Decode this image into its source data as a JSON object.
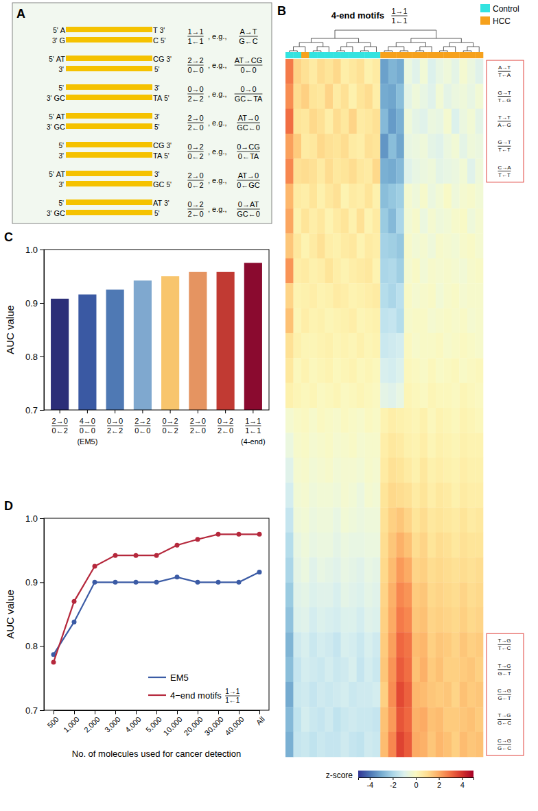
{
  "panel_a": {
    "letter": "A",
    "five_prime": "5'",
    "three_prime": "3'",
    "eg": ", e.g.,",
    "rows": [
      {
        "top": {
          "left": "A",
          "right": "T"
        },
        "bottom": {
          "left": "G",
          "right": "C"
        },
        "motif": [
          "1→1",
          "1←1"
        ],
        "example": [
          "A→T",
          "G←C"
        ]
      },
      {
        "top": {
          "left": "AT",
          "right": "CG"
        },
        "bottom": {},
        "motif": [
          "2→2",
          "0←0"
        ],
        "example": [
          "AT→CG",
          "0←0"
        ]
      },
      {
        "top": {},
        "bottom": {
          "left": "GC",
          "right": "TA"
        },
        "motif": [
          "0→0",
          "2←2"
        ],
        "example": [
          "0→0",
          "GC←TA"
        ]
      },
      {
        "top": {
          "left": "AT"
        },
        "bottom": {
          "left": "GC"
        },
        "motif": [
          "2→0",
          "2←0"
        ],
        "example": [
          "AT→0",
          "GC←0"
        ]
      },
      {
        "top": {
          "right": "CG"
        },
        "bottom": {
          "right": "TA"
        },
        "motif": [
          "0→2",
          "0←2"
        ],
        "example": [
          "0→CG",
          "0←TA"
        ]
      },
      {
        "top": {
          "left": "AT"
        },
        "bottom": {
          "right": "GC"
        },
        "motif": [
          "2→0",
          "0←2"
        ],
        "example": [
          "AT→0",
          "0←GC"
        ]
      },
      {
        "top": {
          "right": "AT"
        },
        "bottom": {
          "left": "GC"
        },
        "motif": [
          "0→2",
          "2←0"
        ],
        "example": [
          "0→AT",
          "GC←0"
        ]
      }
    ]
  },
  "chart_data": [
    {
      "letter": "B",
      "type": "heatmap",
      "title": "4-end motifs",
      "title_motif": [
        "1→1",
        "1←1"
      ],
      "legend": "top-right",
      "groups": [
        {
          "name": "Control",
          "color": "#33e3e0"
        },
        {
          "name": "HCC",
          "color": "#f6a11c"
        }
      ],
      "column_groups": [
        "Control",
        "Control",
        "HCC",
        "Control",
        "Control",
        "Control",
        "Control",
        "Control",
        "Control",
        "Control",
        "Control",
        "Control",
        "HCC",
        "HCC",
        "HCC",
        "HCC",
        "HCC",
        "HCC",
        "HCC",
        "HCC",
        "HCC",
        "HCC",
        "HCC",
        "HCC",
        "HCC"
      ],
      "rows": [
        [
          "A→T",
          "T←A"
        ],
        [
          "G→T",
          "T←G"
        ],
        [
          "T→T",
          "A←G"
        ],
        [
          "G→T",
          "T←T"
        ],
        [
          "C→A",
          "T←T"
        ],
        null,
        null,
        null,
        null,
        null,
        null,
        null,
        null,
        null,
        null,
        null,
        null,
        null,
        null,
        null,
        null,
        null,
        null,
        [
          "T→G",
          "T←C"
        ],
        [
          "T→G",
          "G←T"
        ],
        [
          "C→G",
          "G←T"
        ],
        [
          "T→G",
          "G←C"
        ],
        [
          "C→G",
          "G←C"
        ]
      ],
      "values": [
        [
          2.8,
          1.2,
          0.9,
          0.6,
          1.0,
          0.8,
          1.1,
          0.5,
          0.7,
          0.9,
          0.4,
          0.6,
          -3.2,
          -2.8,
          -3.0,
          -0.6,
          -0.9,
          -0.4,
          -1.0,
          -0.7,
          -0.5,
          -0.8,
          -0.3,
          -0.6,
          -0.9
        ],
        [
          2.5,
          1.0,
          1.3,
          0.8,
          0.7,
          1.2,
          0.6,
          0.9,
          0.4,
          0.8,
          1.0,
          0.5,
          -3.0,
          -3.1,
          -2.6,
          -0.8,
          -0.5,
          -0.7,
          -0.9,
          -0.4,
          -0.8,
          -0.6,
          -0.5,
          -0.7,
          -0.4
        ],
        [
          3.0,
          0.8,
          0.7,
          1.1,
          0.9,
          0.5,
          1.0,
          0.7,
          1.2,
          0.6,
          0.7,
          0.9,
          -2.7,
          -3.3,
          -2.9,
          -0.5,
          -0.8,
          -0.9,
          -0.6,
          -0.7,
          -0.3,
          -1.0,
          -0.6,
          -0.4,
          -0.8
        ],
        [
          2.2,
          1.4,
          0.6,
          0.7,
          1.1,
          0.9,
          0.8,
          1.0,
          0.6,
          0.5,
          0.9,
          0.8,
          -3.4,
          -2.6,
          -3.1,
          -0.7,
          -0.6,
          -0.5,
          -0.8,
          -0.9,
          -0.6,
          -0.4,
          -0.8,
          -0.5,
          -0.6
        ],
        [
          2.6,
          0.9,
          1.0,
          0.9,
          0.6,
          1.0,
          0.7,
          0.8,
          1.0,
          0.7,
          0.6,
          1.1,
          -2.9,
          -3.0,
          -2.7,
          -0.9,
          -0.7,
          -0.6,
          -0.5,
          -0.8,
          -0.7,
          -0.6,
          -0.4,
          -0.9,
          -0.5
        ],
        [
          1.8,
          0.6,
          0.5,
          0.8,
          0.4,
          0.7,
          0.9,
          0.3,
          0.6,
          0.5,
          0.8,
          0.4,
          -2.6,
          -2.4,
          -2.2,
          -0.3,
          -0.5,
          -0.2,
          -0.6,
          -0.4,
          -0.1,
          -0.5,
          -0.3,
          -0.2,
          -0.4
        ],
        [
          2.1,
          0.4,
          0.8,
          0.5,
          0.7,
          0.3,
          0.6,
          0.8,
          0.4,
          0.9,
          0.3,
          0.6,
          -2.3,
          -2.7,
          -2.0,
          -0.4,
          -0.2,
          -0.6,
          -0.3,
          -0.5,
          -0.4,
          -0.2,
          -0.1,
          -0.5,
          -0.3
        ],
        [
          1.5,
          0.7,
          0.3,
          0.6,
          0.9,
          0.5,
          0.4,
          0.6,
          0.7,
          0.3,
          0.6,
          0.5,
          -2.1,
          -2.2,
          -2.4,
          -0.2,
          -0.4,
          -0.3,
          -0.5,
          -0.2,
          -0.3,
          -0.4,
          -0.2,
          -0.1,
          -0.3
        ],
        [
          2.4,
          0.5,
          0.6,
          0.4,
          0.5,
          0.8,
          0.5,
          0.3,
          0.5,
          0.6,
          0.7,
          0.3,
          -2.0,
          -1.9,
          -2.2,
          -0.3,
          -0.1,
          -0.4,
          -0.2,
          -0.3,
          -0.2,
          -0.3,
          -0.4,
          -0.2,
          -0.1
        ],
        [
          1.2,
          0.3,
          0.4,
          0.5,
          0.3,
          0.4,
          0.6,
          0.5,
          0.3,
          0.4,
          0.5,
          0.6,
          -1.8,
          -2.0,
          -1.7,
          -0.1,
          -0.3,
          -0.2,
          -0.1,
          -0.4,
          -0.2,
          -0.1,
          -0.3,
          -0.2,
          -0.2
        ],
        [
          1.6,
          0.2,
          0.5,
          0.3,
          0.4,
          0.2,
          0.3,
          0.4,
          0.5,
          0.2,
          0.3,
          0.4,
          -1.6,
          -1.5,
          -1.8,
          -0.2,
          -0.1,
          -0.1,
          -0.3,
          -0.2,
          -0.1,
          -0.2,
          -0.1,
          -0.3,
          -0.2
        ],
        [
          0.9,
          0.4,
          0.2,
          0.2,
          0.3,
          0.4,
          0.2,
          0.3,
          0.2,
          0.4,
          0.2,
          0.3,
          -1.4,
          -1.3,
          -1.2,
          0.0,
          -0.2,
          -0.1,
          -0.1,
          0.0,
          -0.2,
          -0.1,
          0.0,
          -0.1,
          -0.2
        ],
        [
          0.7,
          0.1,
          0.3,
          0.1,
          0.2,
          0.3,
          0.1,
          0.2,
          0.3,
          0.1,
          0.2,
          0.1,
          -1.1,
          -1.2,
          -1.0,
          0.1,
          0.0,
          -0.1,
          0.1,
          -0.1,
          0.0,
          0.1,
          -0.1,
          0.0,
          0.1
        ],
        [
          0.4,
          0.2,
          0.1,
          0.2,
          0.0,
          0.1,
          0.2,
          0.0,
          0.1,
          0.2,
          0.1,
          0.0,
          -0.8,
          -0.9,
          -0.7,
          0.2,
          0.1,
          0.0,
          0.2,
          0.1,
          0.1,
          0.0,
          0.2,
          0.1,
          0.0
        ],
        [
          -0.3,
          -0.1,
          0.0,
          -0.2,
          0.0,
          -0.1,
          -0.2,
          0.0,
          -0.1,
          -0.2,
          0.0,
          -0.1,
          0.3,
          0.5,
          0.4,
          0.3,
          0.2,
          0.4,
          0.1,
          0.3,
          0.2,
          0.1,
          0.3,
          0.2,
          0.1
        ],
        [
          -0.6,
          -0.2,
          -0.1,
          -0.3,
          -0.2,
          -0.1,
          -0.3,
          -0.2,
          -0.1,
          -0.3,
          -0.2,
          -0.2,
          0.5,
          0.7,
          0.6,
          0.4,
          0.3,
          0.5,
          0.2,
          0.4,
          0.3,
          0.2,
          0.4,
          0.3,
          0.3
        ],
        [
          -0.9,
          -0.3,
          -0.2,
          -0.4,
          -0.3,
          -0.2,
          -0.4,
          -0.3,
          -0.3,
          -0.4,
          -0.2,
          -0.3,
          0.6,
          0.9,
          0.8,
          0.6,
          0.4,
          0.7,
          0.4,
          0.5,
          0.4,
          0.3,
          0.5,
          0.4,
          0.4
        ],
        [
          -1.2,
          -0.4,
          -0.3,
          -0.5,
          -0.4,
          -0.4,
          -0.5,
          -0.3,
          -0.4,
          -0.6,
          -0.3,
          -0.4,
          0.8,
          1.1,
          1.0,
          0.9,
          0.6,
          0.8,
          0.5,
          0.7,
          0.6,
          0.4,
          0.6,
          0.5,
          0.5
        ],
        [
          -1.5,
          -0.5,
          -0.4,
          -0.6,
          -0.5,
          -0.5,
          -0.7,
          -0.4,
          -0.5,
          -0.6,
          -0.5,
          -0.5,
          0.9,
          1.3,
          1.5,
          1.2,
          0.8,
          1.0,
          0.7,
          0.8,
          0.7,
          0.6,
          0.8,
          0.6,
          0.7
        ],
        [
          -1.8,
          -0.7,
          -0.5,
          -0.7,
          -0.6,
          -0.6,
          -0.8,
          -0.6,
          -0.7,
          -0.7,
          -0.6,
          -0.6,
          1.0,
          1.5,
          1.9,
          1.6,
          1.0,
          1.2,
          0.8,
          1.0,
          0.9,
          0.7,
          0.9,
          0.8,
          0.8
        ],
        [
          -2.0,
          -0.8,
          -0.6,
          -0.9,
          -0.7,
          -0.8,
          -0.9,
          -0.7,
          -0.8,
          -0.9,
          -0.7,
          -0.8,
          1.1,
          1.7,
          2.3,
          2.0,
          1.2,
          1.3,
          1.0,
          1.1,
          1.0,
          0.9,
          1.0,
          0.9,
          1.0
        ],
        [
          -2.3,
          -0.9,
          -0.8,
          -1.0,
          -0.9,
          -0.9,
          -1.1,
          -0.8,
          -0.9,
          -1.0,
          -0.8,
          -0.9,
          1.2,
          1.9,
          2.6,
          2.4,
          1.4,
          1.5,
          1.1,
          1.2,
          1.1,
          1.0,
          1.2,
          1.0,
          1.1
        ],
        [
          -2.5,
          -1.0,
          -0.9,
          -1.2,
          -1.0,
          -1.1,
          -1.2,
          -1.0,
          -1.0,
          -1.2,
          -0.9,
          -1.0,
          1.3,
          2.0,
          2.8,
          2.6,
          1.5,
          1.6,
          1.2,
          1.3,
          1.2,
          1.1,
          1.3,
          1.1,
          1.2
        ],
        [
          -2.8,
          -1.3,
          -1.1,
          -1.4,
          -1.2,
          -1.3,
          -1.5,
          -1.1,
          -1.2,
          -1.4,
          -1.1,
          -1.3,
          1.4,
          2.2,
          3.1,
          2.9,
          1.7,
          1.8,
          1.3,
          1.5,
          1.4,
          1.2,
          1.5,
          1.3,
          1.4
        ],
        [
          -2.6,
          -1.5,
          -1.2,
          -1.3,
          -1.4,
          -1.2,
          -1.4,
          -1.3,
          -1.1,
          -1.5,
          -1.2,
          -1.4,
          1.5,
          2.4,
          3.3,
          3.0,
          1.6,
          1.9,
          1.4,
          1.6,
          1.3,
          1.3,
          1.4,
          1.5,
          1.3
        ],
        [
          -3.0,
          -1.4,
          -1.3,
          -1.5,
          -1.3,
          -1.4,
          -1.3,
          -1.2,
          -1.4,
          -1.3,
          -1.3,
          -1.2,
          1.3,
          2.5,
          3.6,
          3.2,
          1.8,
          1.7,
          1.5,
          1.4,
          1.5,
          1.2,
          1.6,
          1.4,
          1.5
        ],
        [
          -2.7,
          -1.6,
          -1.2,
          -1.4,
          -1.5,
          -1.3,
          -1.6,
          -1.4,
          -1.3,
          -1.4,
          -1.4,
          -1.5,
          1.6,
          2.3,
          3.4,
          3.1,
          1.9,
          2.0,
          1.6,
          1.7,
          1.4,
          1.4,
          1.5,
          1.6,
          1.4
        ],
        [
          -2.9,
          -1.5,
          -1.4,
          -1.6,
          -1.4,
          -1.5,
          -1.5,
          -1.3,
          -1.5,
          -1.6,
          -1.3,
          -1.4,
          1.7,
          2.6,
          3.7,
          3.3,
          2.0,
          1.9,
          1.5,
          1.8,
          1.6,
          1.3,
          1.7,
          1.5,
          1.6
        ]
      ],
      "colorbar": {
        "title": "z-score",
        "range": [
          -5,
          5
        ],
        "ticks": [
          -4,
          -2,
          0,
          2,
          4
        ]
      }
    },
    {
      "letter": "C",
      "type": "bar",
      "ylabel": "AUC value",
      "categories": [
        [
          "2→0",
          "0←2"
        ],
        [
          "4→0",
          "0←0"
        ],
        [
          "0→0",
          "2←2"
        ],
        [
          "2→2",
          "0←0"
        ],
        [
          "0→2",
          "0←2"
        ],
        [
          "2→0",
          "2←0"
        ],
        [
          "0→2",
          "2←0"
        ],
        [
          "1→1",
          "1←1"
        ]
      ],
      "category_notes": [
        null,
        "(EM5)",
        null,
        null,
        null,
        null,
        null,
        "(4-end)"
      ],
      "values": [
        0.908,
        0.916,
        0.925,
        0.942,
        0.95,
        0.958,
        0.958,
        0.975
      ],
      "colors": [
        "#2c2e78",
        "#3a59a3",
        "#4f79b4",
        "#7fa8cf",
        "#f8c56d",
        "#e59461",
        "#c13a33",
        "#8a0a2f"
      ],
      "ylim": [
        0.7,
        1.0
      ],
      "yticks": [
        0.7,
        0.8,
        0.9,
        {
          "value": 1,
          "label": "1.0"
        }
      ]
    },
    {
      "letter": "D",
      "type": "line",
      "xlabel": "No. of molecules used for cancer detection",
      "ylabel": "AUC value",
      "legend": "bottom-right",
      "categories": [
        "500",
        "1,000",
        "2,000",
        "3,000",
        "4,000",
        "5,000",
        "10,000",
        "20,000",
        "30,000",
        "40,000",
        "All"
      ],
      "series": [
        {
          "name": "EM5",
          "color": "#3b5ba5",
          "marker": "circle",
          "values": [
            0.787,
            0.838,
            0.9,
            0.9,
            0.9,
            0.9,
            0.908,
            0.9,
            0.9,
            0.9,
            0.916
          ]
        },
        {
          "name": "4−end motifs",
          "motif": [
            "1→1",
            "1←1"
          ],
          "color": "#b5283c",
          "marker": "circle",
          "values": [
            0.775,
            0.87,
            0.925,
            0.942,
            0.942,
            0.942,
            0.958,
            0.967,
            0.975,
            0.975,
            0.975
          ]
        }
      ],
      "ylim": [
        0.7,
        1.0
      ],
      "yticks": [
        0.7,
        0.8,
        0.9,
        {
          "value": 1,
          "label": "1.0"
        }
      ]
    }
  ]
}
